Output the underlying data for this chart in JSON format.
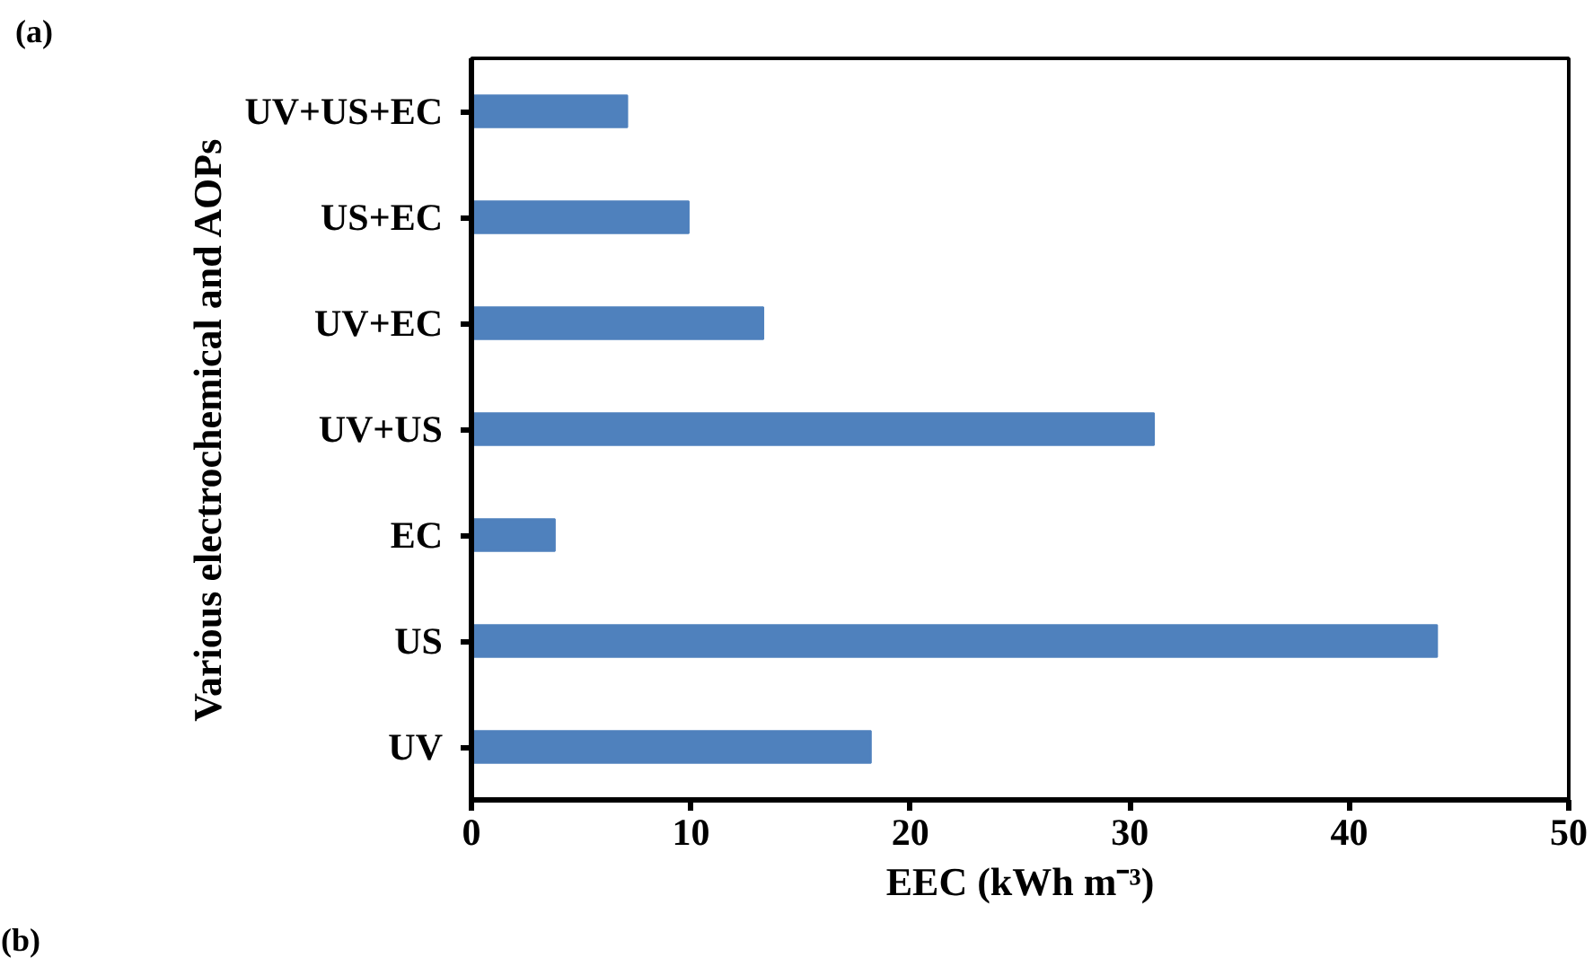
{
  "chart_data": {
    "type": "bar",
    "orientation": "horizontal",
    "categories": [
      "UV+US+EC",
      "US+EC",
      "UV+EC",
      "UV+US",
      "EC",
      "US",
      "UV"
    ],
    "values": [
      7.1,
      9.9,
      13.3,
      31.1,
      3.8,
      44.0,
      18.2
    ],
    "color": "#4f81bd",
    "xlabel": "EEC (kWh m⁻³)",
    "ylabel": "Various electrochemical and AOPs",
    "xlim": [
      0,
      50
    ],
    "xticks": [
      0,
      10,
      20,
      30,
      40,
      50
    ],
    "grid": false,
    "annotations": [
      "(a)",
      "(b)"
    ]
  }
}
